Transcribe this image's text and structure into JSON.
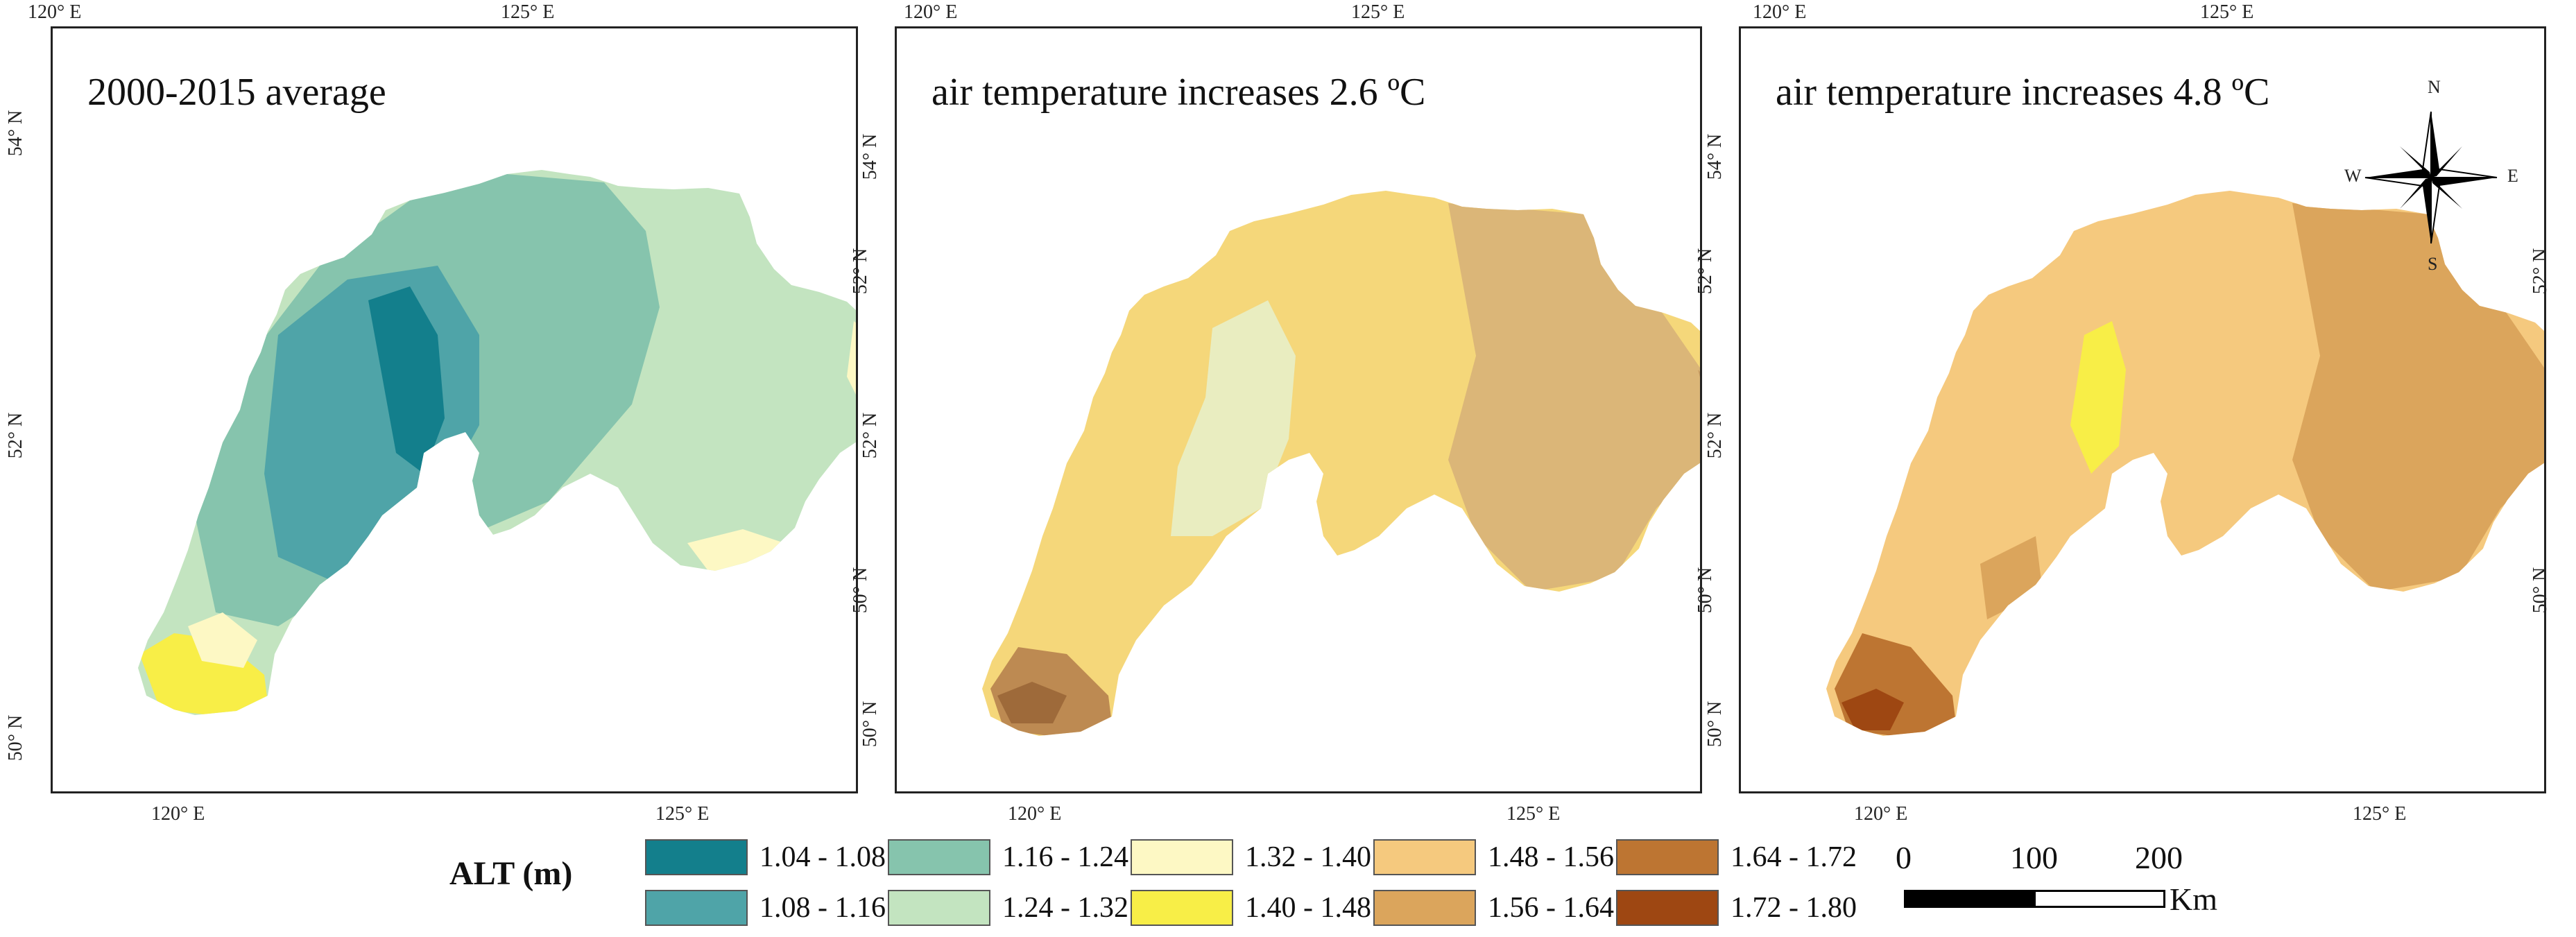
{
  "panels": [
    {
      "title": "2000-2015 average"
    },
    {
      "title": "air temperature increases 2.6 ºC"
    },
    {
      "title": "air temperature increases 4.8 ºC"
    }
  ],
  "ticks": {
    "lon_120": "120° E",
    "lon_125": "125° E",
    "lat_50": "50° N",
    "lat_52": "52° N",
    "lat_54": "54° N"
  },
  "compass": {
    "n": "N",
    "s": "S",
    "e": "E",
    "w": "W"
  },
  "legend": {
    "title": "ALT (m)",
    "classes": [
      {
        "label": "1.04 - 1.08",
        "color": "#137f8c"
      },
      {
        "label": "1.08 - 1.16",
        "color": "#4fa4a8"
      },
      {
        "label": "1.16 - 1.24",
        "color": "#86c4ad"
      },
      {
        "label": "1.24 - 1.32",
        "color": "#c3e4c0"
      },
      {
        "label": "1.32 - 1.40",
        "color": "#fdf8c4"
      },
      {
        "label": "1.40 - 1.48",
        "color": "#f8ee47"
      },
      {
        "label": "1.48 - 1.56",
        "color": "#f5c97e"
      },
      {
        "label": "1.56 - 1.64",
        "color": "#dba55c"
      },
      {
        "label": "1.64 - 1.72",
        "color": "#bd7532"
      },
      {
        "label": "1.72 - 1.80",
        "color": "#9e4712"
      }
    ]
  },
  "scalebar": {
    "labels": [
      "0",
      "100",
      "200"
    ],
    "unit": "Km"
  }
}
